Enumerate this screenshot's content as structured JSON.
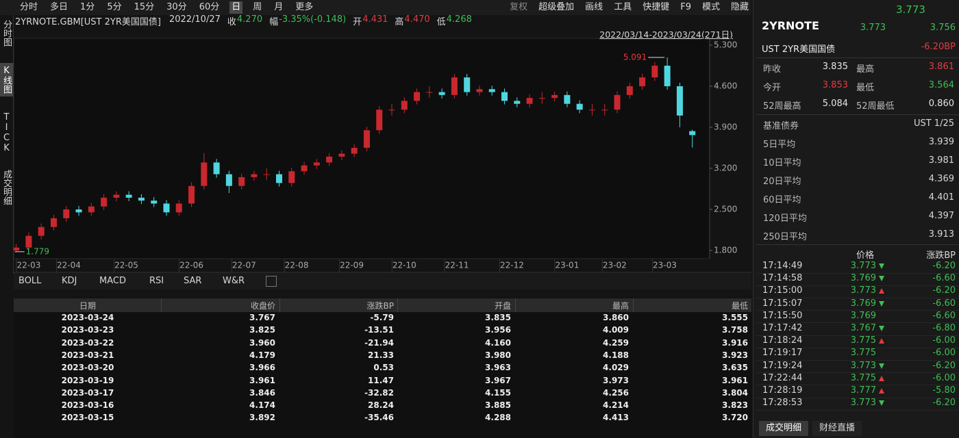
{
  "toolbar": {
    "periods": [
      "分时",
      "多日",
      "1分",
      "5分",
      "15分",
      "30分",
      "60分",
      "日",
      "周",
      "月",
      "更多"
    ],
    "active": 7,
    "tools": [
      "复权",
      "超级叠加",
      "画线",
      "工具",
      "快捷键",
      "F9",
      "模式",
      "隐藏"
    ]
  },
  "side_tabs": [
    "分时图",
    "K线图",
    "TICK",
    "成交明细"
  ],
  "side_active": 1,
  "quote": {
    "symbol": "2YRNOTE.GBM[UST 2YR美国国债]",
    "date": "2022/10/27",
    "fields": [
      {
        "label": "收",
        "value": "4.270",
        "color": "green"
      },
      {
        "label": "幅",
        "value": "-3.35%(-0.148)",
        "color": "green"
      },
      {
        "label": "开",
        "value": "4.431",
        "color": "red"
      },
      {
        "label": "高",
        "value": "4.470",
        "color": "red"
      },
      {
        "label": "低",
        "value": "4.268",
        "color": "green"
      }
    ]
  },
  "range": "2022/03/14-2023/03/24(271日)",
  "chart_data": {
    "type": "candlestick",
    "x": [
      0,
      5,
      10,
      15,
      20,
      25,
      30,
      35,
      40,
      45,
      50,
      55,
      60,
      65,
      70,
      75,
      80,
      85,
      90,
      95,
      100,
      105,
      110,
      115,
      120,
      125,
      130,
      135,
      140,
      145,
      150,
      155,
      160,
      165,
      170,
      175,
      180,
      185,
      190,
      195,
      200,
      205,
      210,
      215,
      220,
      225,
      230,
      235,
      240,
      245,
      250,
      255,
      260,
      265,
      270
    ],
    "open": [
      1.8,
      1.85,
      2.05,
      2.2,
      2.35,
      2.5,
      2.45,
      2.55,
      2.7,
      2.75,
      2.7,
      2.65,
      2.6,
      2.45,
      2.6,
      2.9,
      3.3,
      3.1,
      2.9,
      3.05,
      3.1,
      3.1,
      2.95,
      3.15,
      3.25,
      3.3,
      3.4,
      3.45,
      3.55,
      3.85,
      4.2,
      4.2,
      4.35,
      4.5,
      4.5,
      4.45,
      4.75,
      4.5,
      4.55,
      4.5,
      4.35,
      4.3,
      4.4,
      4.4,
      4.45,
      4.3,
      4.2,
      4.2,
      4.2,
      4.45,
      4.6,
      4.75,
      4.95,
      4.6,
      3.835
    ],
    "high": [
      1.91,
      2.11,
      2.26,
      2.41,
      2.56,
      2.56,
      2.61,
      2.76,
      2.81,
      2.81,
      2.76,
      2.71,
      2.66,
      2.66,
      2.96,
      3.46,
      3.36,
      3.16,
      3.11,
      3.16,
      3.2,
      3.16,
      3.21,
      3.31,
      3.36,
      3.46,
      3.51,
      3.61,
      3.91,
      4.26,
      4.3,
      4.41,
      4.56,
      4.6,
      4.56,
      4.81,
      4.81,
      4.61,
      4.61,
      4.56,
      4.41,
      4.46,
      4.5,
      4.51,
      4.51,
      4.36,
      4.3,
      4.3,
      4.51,
      4.66,
      4.81,
      5.01,
      5.091,
      4.66,
      3.86
    ],
    "low": [
      1.779,
      1.79,
      1.99,
      2.14,
      2.29,
      2.39,
      2.39,
      2.49,
      2.64,
      2.64,
      2.59,
      2.54,
      2.39,
      2.39,
      2.54,
      2.84,
      3.04,
      2.78,
      2.84,
      2.99,
      3.0,
      2.89,
      2.89,
      3.09,
      3.19,
      3.24,
      3.34,
      3.39,
      3.49,
      3.79,
      4.1,
      4.14,
      4.29,
      4.4,
      4.39,
      4.39,
      4.44,
      4.44,
      4.44,
      4.29,
      4.24,
      4.24,
      4.3,
      4.34,
      4.24,
      4.14,
      4.1,
      4.1,
      4.14,
      4.39,
      4.54,
      4.69,
      4.54,
      3.9,
      3.555
    ],
    "close": [
      1.85,
      2.05,
      2.2,
      2.35,
      2.5,
      2.45,
      2.55,
      2.7,
      2.75,
      2.7,
      2.65,
      2.6,
      2.45,
      2.6,
      2.9,
      3.3,
      3.1,
      2.9,
      3.05,
      3.1,
      3.1,
      2.95,
      3.15,
      3.25,
      3.3,
      3.4,
      3.45,
      3.55,
      3.85,
      4.2,
      4.2,
      4.35,
      4.5,
      4.5,
      4.45,
      4.75,
      4.5,
      4.55,
      4.5,
      4.35,
      4.3,
      4.4,
      4.4,
      4.45,
      4.3,
      4.2,
      4.2,
      4.2,
      4.45,
      4.6,
      4.75,
      4.95,
      4.6,
      4.1,
      3.767
    ],
    "up_color": "#c8282e",
    "down_color": "#4fd6df",
    "max_color": "#e8393f",
    "min_color": "#3fbf55",
    "xlim": [
      -1,
      272
    ],
    "xticks": [
      {
        "value": 5,
        "label": "22-03"
      },
      {
        "value": 21,
        "label": "22-04"
      },
      {
        "value": 44,
        "label": "22-05"
      },
      {
        "value": 70,
        "label": "22-06"
      },
      {
        "value": 91,
        "label": "22-07"
      },
      {
        "value": 112,
        "label": "22-08"
      },
      {
        "value": 134,
        "label": "22-09"
      },
      {
        "value": 155,
        "label": "22-10"
      },
      {
        "value": 176,
        "label": "22-11"
      },
      {
        "value": 198,
        "label": "22-12"
      },
      {
        "value": 220,
        "label": "23-01"
      },
      {
        "value": 239,
        "label": "23-02"
      },
      {
        "value": 259,
        "label": "23-03"
      }
    ],
    "ylim": [
      1.695,
      5.393
    ],
    "yticks": [
      {
        "value": 1.8,
        "label": "1.800"
      },
      {
        "value": 2.5,
        "label": "2.500"
      },
      {
        "value": 3.2,
        "label": "3.200"
      },
      {
        "value": 3.9,
        "label": "3.900"
      },
      {
        "value": 4.6,
        "label": "4.600"
      },
      {
        "value": 5.3,
        "label": "5.300"
      }
    ]
  },
  "indicators": [
    "BOLL",
    "KDJ",
    "MACD",
    "RSI",
    "SAR",
    "W&R"
  ],
  "table": {
    "columns": [
      "日期",
      "收盘价",
      "涨跌BP",
      "开盘",
      "最高",
      "最低"
    ],
    "rows": [
      [
        "2023-03-24",
        "3.767",
        "-5.79",
        "3.835",
        "3.860",
        "3.555"
      ],
      [
        "2023-03-23",
        "3.825",
        "-13.51",
        "3.956",
        "4.009",
        "3.758"
      ],
      [
        "2023-03-22",
        "3.960",
        "-21.94",
        "4.160",
        "4.259",
        "3.916"
      ],
      [
        "2023-03-21",
        "4.179",
        "21.33",
        "3.980",
        "4.188",
        "3.923"
      ],
      [
        "2023-03-20",
        "3.966",
        "0.53",
        "3.963",
        "4.029",
        "3.635"
      ],
      [
        "2023-03-19",
        "3.961",
        "11.47",
        "3.967",
        "3.973",
        "3.961"
      ],
      [
        "2023-03-17",
        "3.846",
        "-32.82",
        "4.155",
        "4.256",
        "3.804"
      ],
      [
        "2023-03-16",
        "4.174",
        "28.24",
        "3.885",
        "4.214",
        "3.823"
      ],
      [
        "2023-03-15",
        "3.892",
        "-35.46",
        "4.288",
        "4.413",
        "3.720"
      ]
    ]
  },
  "panel": {
    "top_price": "3.773",
    "name": "2YRNOTE",
    "price1": "3.773",
    "price2": "3.756",
    "fullname": "UST 2YR美国国债",
    "change": "-6.20BP",
    "stats": [
      {
        "label": "昨收",
        "value": "3.835",
        "color": "white"
      },
      {
        "label": "最高",
        "value": "3.861",
        "color": "red"
      },
      {
        "label": "今开",
        "value": "3.853",
        "color": "red"
      },
      {
        "label": "最低",
        "value": "3.564",
        "color": "green"
      },
      {
        "label": "52周最高",
        "value": "5.084",
        "color": "white"
      },
      {
        "label": "52周最低",
        "value": "0.860",
        "color": "white"
      }
    ],
    "benchmark": {
      "label": "基准债券",
      "value": "UST 1/25"
    },
    "averages": [
      {
        "label": "5日平均",
        "value": "3.939"
      },
      {
        "label": "10日平均",
        "value": "3.981"
      },
      {
        "label": "20日平均",
        "value": "4.369"
      },
      {
        "label": "60日平均",
        "value": "4.401"
      },
      {
        "label": "120日平均",
        "value": "4.397"
      },
      {
        "label": "250日平均",
        "value": "3.913"
      }
    ]
  },
  "ticks": {
    "columns": [
      "价格",
      "涨跌BP"
    ],
    "rows": [
      {
        "time": "17:14:49",
        "price": "3.773",
        "change": "-6.20",
        "trend": "down"
      },
      {
        "time": "17:14:58",
        "price": "3.769",
        "change": "-6.60",
        "trend": "down"
      },
      {
        "time": "17:15:00",
        "price": "3.773",
        "change": "-6.20",
        "trend": "up"
      },
      {
        "time": "17:15:07",
        "price": "3.769",
        "change": "-6.60",
        "trend": "down"
      },
      {
        "time": "17:15:50",
        "price": "3.769",
        "change": "-6.60",
        "trend": null
      },
      {
        "time": "17:17:42",
        "price": "3.767",
        "change": "-6.80",
        "trend": "down"
      },
      {
        "time": "17:18:24",
        "price": "3.775",
        "change": "-6.00",
        "trend": "up"
      },
      {
        "time": "17:19:17",
        "price": "3.775",
        "change": "-6.00",
        "trend": null
      },
      {
        "time": "17:19:24",
        "price": "3.773",
        "change": "-6.20",
        "trend": "down"
      },
      {
        "time": "17:22:44",
        "price": "3.775",
        "change": "-6.00",
        "trend": "up"
      },
      {
        "time": "17:28:19",
        "price": "3.777",
        "change": "-5.80",
        "trend": "up"
      },
      {
        "time": "17:28:53",
        "price": "3.773",
        "change": "-6.20",
        "trend": "down"
      }
    ]
  },
  "bottom_tabs": [
    "成交明细",
    "财经直播"
  ],
  "bottom_active": 0
}
